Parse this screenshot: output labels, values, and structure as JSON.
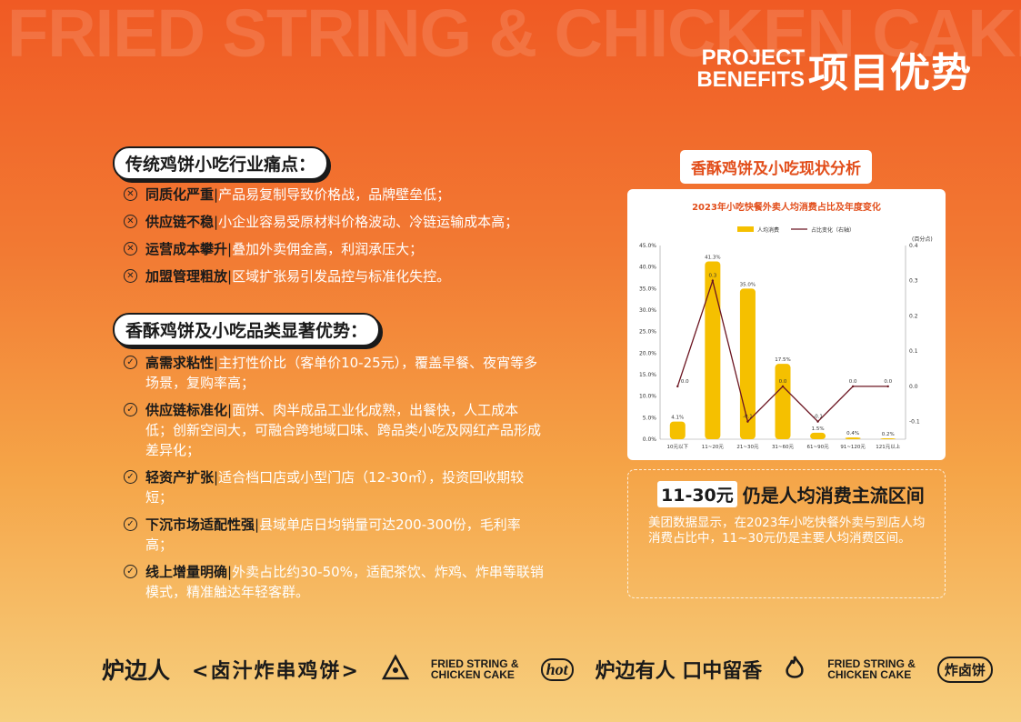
{
  "watermark": "FRIED STRING & CHICKEN CAKE",
  "header": {
    "en_line1": "PROJECT",
    "en_line2": "BENEFITS",
    "cn": "项目优势"
  },
  "pain": {
    "title": "传统鸡饼小吃行业痛点：",
    "items": [
      {
        "term": "同质化严重",
        "desc": "产品易复制导致价格战，品牌壁垒低；"
      },
      {
        "term": "供应链不稳",
        "desc": "小企业容易受原材料价格波动、冷链运输成本高；"
      },
      {
        "term": "运营成本攀升",
        "desc": "叠加外卖佣金高，利润承压大；"
      },
      {
        "term": "加盟管理粗放",
        "desc": "区域扩张易引发品控与标准化失控。"
      }
    ]
  },
  "advantages": {
    "title": "香酥鸡饼及小吃品类显著优势：",
    "items": [
      {
        "term": "高需求粘性",
        "desc": "主打性价比（客单价10-25元），覆盖早餐、夜宵等多场景，复购率高；"
      },
      {
        "term": "供应链标准化",
        "desc": "面饼、肉半成品工业化成熟，出餐快，人工成本低；创新空间大，可融合跨地域口味、跨品类小吃及网红产品形成差异化；"
      },
      {
        "term": "轻资产扩张",
        "desc": "适合档口店或小型门店（12-30㎡），投资回收期较短；"
      },
      {
        "term": "下沉市场适配性强",
        "desc": "县域单店日均销量可达200-300份，毛利率高；"
      },
      {
        "term": "线上增量明确",
        "desc": "外卖占比约30-50%，适配茶饮、炸鸡、炸串等联销模式，精准触达年轻客群。"
      }
    ]
  },
  "chart_section": {
    "pill": "香酥鸡饼及小吃现状分析"
  },
  "chart_data": {
    "type": "bar",
    "title": "2023年小吃快餐外卖人均消费占比及年度变化",
    "legend": [
      "人均消费",
      "占比变化（右轴）"
    ],
    "right_axis_label": "(百分点)",
    "categories": [
      "10元以下",
      "11~20元",
      "21~30元",
      "31~60元",
      "61~90元",
      "91~120元",
      "121元以上"
    ],
    "series": [
      {
        "name": "人均消费",
        "type": "bar",
        "values": [
          4.1,
          41.3,
          35.0,
          17.5,
          1.5,
          0.4,
          0.2
        ],
        "labels": [
          "4.1%",
          "41.3%",
          "35.0%",
          "17.5%",
          "1.5%",
          "0.4%",
          "0.2%"
        ],
        "color": "#f5c000"
      },
      {
        "name": "占比变化（右轴）",
        "type": "line",
        "axis": "right",
        "values": [
          0.0,
          0.3,
          -0.1,
          0.0,
          -0.1,
          0.0,
          0.0
        ],
        "labels": [
          "0.0",
          "0.3",
          "-0.1",
          "0.0",
          "-0.1",
          "0.0",
          "0.0"
        ],
        "color": "#6b1420"
      }
    ],
    "left_ticks": [
      "0.0%",
      "5.0%",
      "10.0%",
      "15.0%",
      "20.0%",
      "25.0%",
      "30.0%",
      "35.0%",
      "40.0%",
      "45.0%"
    ],
    "right_ticks": [
      "-0.1",
      "0.0",
      "0.1",
      "0.2",
      "0.3",
      "0.4"
    ],
    "ylim": [
      0,
      45
    ],
    "y2lim": [
      -0.15,
      0.4
    ]
  },
  "info": {
    "highlight": "11-30元",
    "title_rest": "仍是人均消费主流区间",
    "text": "美团数据显示，在2023年小吃快餐外卖与到店人均消费占比中，11~30元仍是主要人均消费区间。"
  },
  "footer": {
    "brand": "炉边人",
    "sub": "<卤汁炸串鸡饼>",
    "en1": "FRIED STRING &",
    "en2": "CHICKEN CAKE",
    "hot": "hot",
    "slogan": "炉边有人 口中留香",
    "en3": "FRIED STRING &",
    "en4": "CHICKEN CAKE",
    "badge": "炸卤饼"
  }
}
